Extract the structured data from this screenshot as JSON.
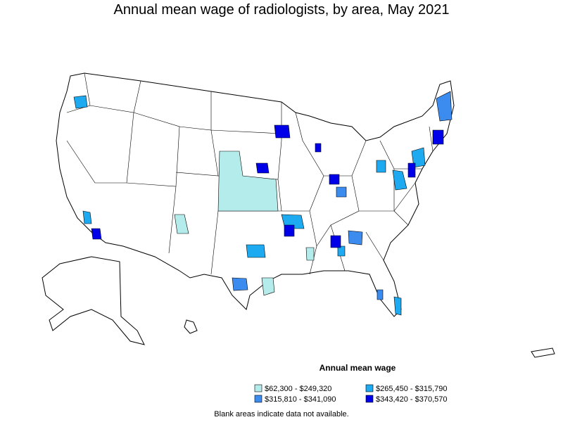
{
  "title": "Annual mean wage of radiologists, by area, May 2021",
  "legend": {
    "title": "Annual mean wage",
    "items": [
      {
        "label": "$62,300 - $249,320",
        "color": "#b4ecec"
      },
      {
        "label": "$265,450 - $315,790",
        "color": "#1eaaf0"
      },
      {
        "label": "$315,810 - $341,090",
        "color": "#3c8cf0"
      },
      {
        "label": "$343,420 - $370,570",
        "color": "#0000e8"
      }
    ]
  },
  "note": "Blank areas indicate data not available."
}
